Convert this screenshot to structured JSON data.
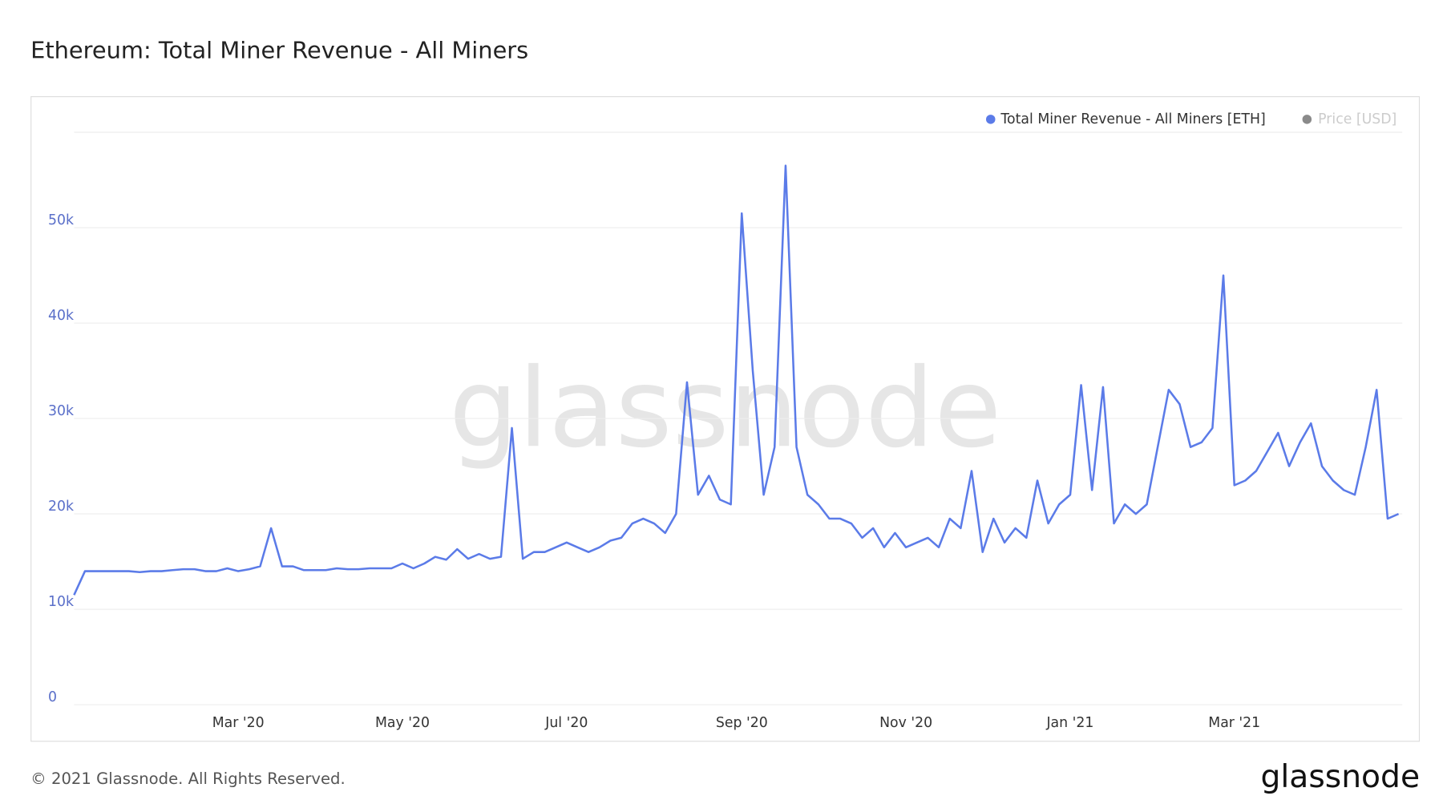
{
  "chart_data": {
    "type": "line",
    "title": "Ethereum: Total Miner Revenue - All Miners",
    "watermark": "glassnode",
    "footer": "© 2021 Glassnode. All Rights Reserved.",
    "logo": "glassnode",
    "categories": [
      null,
      null,
      null,
      null,
      null,
      null,
      null,
      null,
      null,
      null,
      null,
      null,
      null,
      null,
      null,
      "Mar '20",
      null,
      null,
      null,
      null,
      null,
      null,
      null,
      null,
      null,
      null,
      null,
      null,
      null,
      null,
      "May '20",
      null,
      null,
      null,
      null,
      null,
      null,
      null,
      null,
      null,
      null,
      null,
      null,
      null,
      null,
      "Jul '20",
      null,
      null,
      null,
      null,
      null,
      null,
      null,
      null,
      null,
      null,
      null,
      null,
      null,
      null,
      null,
      "Sep '20",
      null,
      null,
      null,
      null,
      null,
      null,
      null,
      null,
      null,
      null,
      null,
      null,
      null,
      null,
      "Nov '20",
      null,
      null,
      null,
      null,
      null,
      null,
      null,
      null,
      null,
      null,
      null,
      null,
      null,
      null,
      "Jan '21",
      null,
      null,
      null,
      null,
      null,
      null,
      null,
      null,
      null,
      null,
      null,
      null,
      null,
      null,
      "Mar '21",
      null,
      null,
      null,
      null,
      null,
      null,
      null,
      null,
      null,
      null,
      null,
      null,
      null,
      null,
      null
    ],
    "series": [
      {
        "name": "Total Miner Revenue - All Miners [ETH]",
        "color": "#5b7be8",
        "values": [
          11500,
          14000,
          14000,
          14000,
          14000,
          14000,
          13900,
          14000,
          14000,
          14100,
          14200,
          14200,
          14000,
          14000,
          14300,
          14000,
          14200,
          14500,
          18500,
          14500,
          14500,
          14100,
          14100,
          14100,
          14300,
          14200,
          14200,
          14300,
          14300,
          14300,
          14800,
          14300,
          14800,
          15500,
          15200,
          16300,
          15300,
          15800,
          15300,
          15500,
          29000,
          15300,
          16000,
          16000,
          16500,
          17000,
          16500,
          16000,
          16500,
          17200,
          17500,
          19000,
          19500,
          19000,
          18000,
          20000,
          33800,
          22000,
          24000,
          21500,
          21000,
          51500,
          35000,
          22000,
          27000,
          56500,
          27000,
          22000,
          21000,
          19500,
          19500,
          19000,
          17500,
          18500,
          16500,
          18000,
          16500,
          17000,
          17500,
          16500,
          19500,
          18500,
          24500,
          16000,
          19500,
          17000,
          18500,
          17500,
          23500,
          19000,
          21000,
          22000,
          33500,
          22500,
          33300,
          19000,
          21000,
          20000,
          21000,
          27000,
          33000,
          31500,
          27000,
          27500,
          29000,
          45000,
          23000,
          23500,
          24500,
          26500,
          28500,
          25000,
          27500,
          29500,
          25000,
          23500,
          22500,
          22000,
          27000,
          33000,
          19500,
          20000
        ]
      }
    ],
    "hidden_series": [
      {
        "name": "Price [USD]",
        "color": "#8a8a8a"
      }
    ],
    "ylim": [
      0,
      60000
    ],
    "yticks": [
      0,
      {
        "value": 10000,
        "label": "10k"
      },
      {
        "value": 20000,
        "label": "20k"
      },
      {
        "value": 30000,
        "label": "30k"
      },
      {
        "value": 40000,
        "label": "40k"
      },
      {
        "value": 50000,
        "label": "50k"
      }
    ],
    "grid": true
  }
}
